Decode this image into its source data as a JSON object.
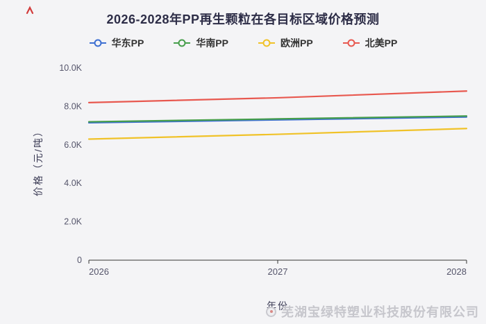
{
  "page": {
    "watermark": "芜湖宝绿特塑业科技股份有限公司"
  },
  "chart_data": {
    "type": "line",
    "title": "2026-2028年PP再生颗粒在各目标区域价格预测",
    "xlabel": "年份",
    "ylabel": "价格（元/吨）",
    "x": [
      2026,
      2027,
      2028
    ],
    "x_tick_labels": [
      "2026",
      "2027",
      "2028"
    ],
    "ylim": [
      0,
      10000
    ],
    "y_ticks": [
      0,
      2000,
      4000,
      6000,
      8000,
      10000
    ],
    "y_tick_labels": [
      "0",
      "2.0K",
      "4.0K",
      "6.0K",
      "8.0K",
      "10.0K"
    ],
    "grid": false,
    "legend_position": "top",
    "series": [
      {
        "name": "华东PP",
        "color": "#3d6fd2",
        "values": [
          7150,
          7300,
          7450
        ]
      },
      {
        "name": "华南PP",
        "color": "#469e4b",
        "values": [
          7200,
          7350,
          7500
        ]
      },
      {
        "name": "欧洲PP",
        "color": "#f0c228",
        "values": [
          6300,
          6550,
          6850
        ]
      },
      {
        "name": "北美PP",
        "color": "#e8584f",
        "values": [
          8200,
          8450,
          8800
        ]
      }
    ]
  }
}
